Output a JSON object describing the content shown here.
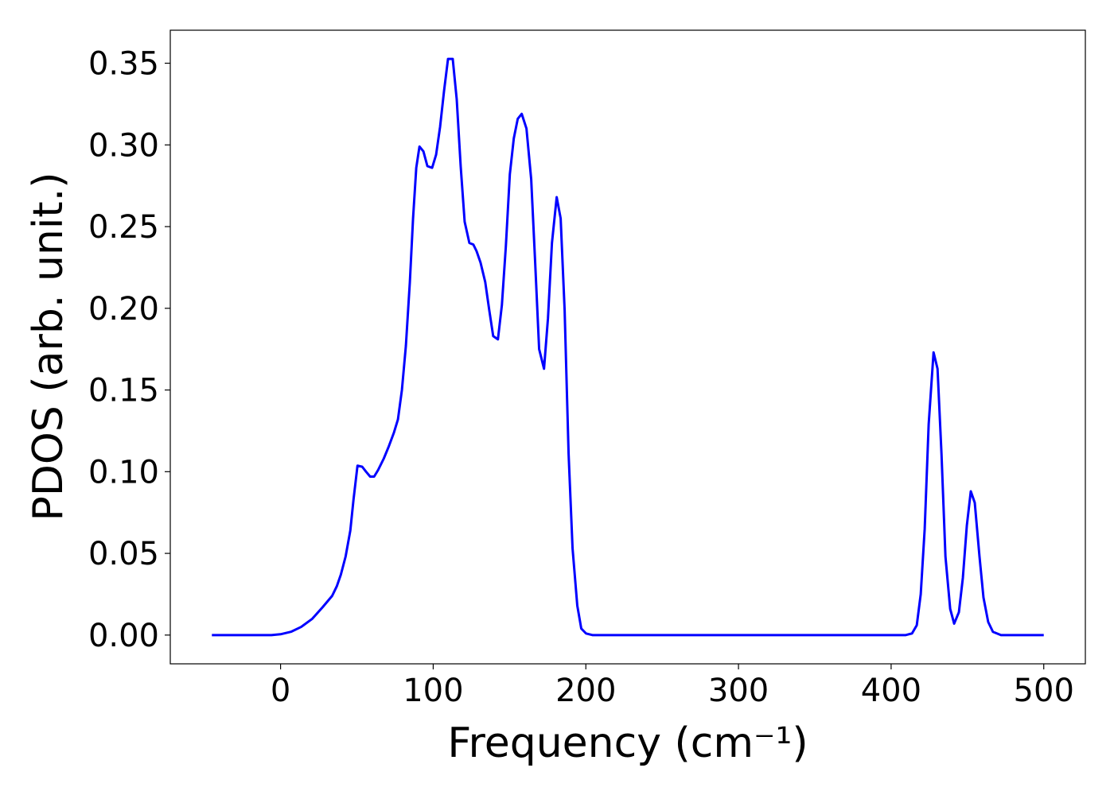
{
  "chart_data": {
    "type": "line",
    "xlabel": "Frequency (cm⁻¹)",
    "ylabel": "PDOS (arb. unit.)",
    "xlim": [
      -72.25,
      527.25
    ],
    "ylim": [
      -0.0176,
      0.3702
    ],
    "xticks": [
      0,
      100,
      200,
      300,
      400,
      500
    ],
    "yticks": [
      {
        "value": 0,
        "label": "0.00"
      },
      0.05,
      {
        "value": 0.1,
        "label": "0.10"
      },
      0.15,
      {
        "value": 0.2,
        "label": "0.20"
      },
      0.25,
      {
        "value": 0.3,
        "label": "0.30"
      },
      0.35
    ],
    "grid": false,
    "x": [
      -45,
      -6,
      0,
      6.8,
      13.5,
      20.8,
      27.5,
      33.8,
      36.9,
      39.5,
      42.6,
      45.7,
      47.8,
      50.4,
      53.5,
      56,
      58.7,
      61.3,
      63.9,
      67.6,
      70.7,
      74.3,
      76.9,
      79.5,
      82.1,
      84.7,
      86.8,
      88.9,
      91,
      93.6,
      96.2,
      99.3,
      101.9,
      104.5,
      107.1,
      109.7,
      112.8,
      115.4,
      118,
      120.6,
      123.7,
      126.3,
      128.4,
      131,
      134.1,
      136.7,
      139.3,
      142.4,
      145,
      147.6,
      150.2,
      152.8,
      155.4,
      158,
      161.1,
      164.2,
      166.8,
      169.4,
      172.6,
      175.2,
      177.8,
      180.9,
      183.5,
      186.1,
      188.7,
      191.3,
      194.4,
      197,
      200.1,
      204.3,
      409.6,
      413.7,
      416.8,
      419.4,
      422,
      424.6,
      427.8,
      430.4,
      433,
      435.6,
      438.7,
      441.3,
      444.4,
      447,
      449.6,
      452.2,
      454.8,
      457.9,
      460.5,
      463.6,
      466.7,
      472,
      500
    ],
    "series": [
      {
        "name": "PDOS",
        "color": "#0000ff",
        "values": [
          0,
          0,
          0.0005,
          0.002,
          0.005,
          0.01,
          0.017,
          0.024,
          0.03,
          0.037,
          0.048,
          0.064,
          0.083,
          0.1037,
          0.103,
          0.1,
          0.097,
          0.097,
          0.101,
          0.108,
          0.115,
          0.124,
          0.132,
          0.15,
          0.177,
          0.216,
          0.255,
          0.286,
          0.299,
          0.296,
          0.287,
          0.286,
          0.294,
          0.311,
          0.333,
          0.3526,
          0.3526,
          0.328,
          0.287,
          0.253,
          0.24,
          0.239,
          0.235,
          0.228,
          0.216,
          0.199,
          0.183,
          0.181,
          0.202,
          0.238,
          0.282,
          0.304,
          0.316,
          0.319,
          0.31,
          0.279,
          0.228,
          0.175,
          0.163,
          0.194,
          0.24,
          0.268,
          0.255,
          0.199,
          0.111,
          0.053,
          0.018,
          0.004,
          0.001,
          0,
          0,
          0.001,
          0.006,
          0.025,
          0.065,
          0.129,
          0.173,
          0.163,
          0.111,
          0.048,
          0.016,
          0.007,
          0.014,
          0.035,
          0.067,
          0.088,
          0.081,
          0.048,
          0.023,
          0.008,
          0.002,
          0,
          0
        ]
      }
    ]
  }
}
